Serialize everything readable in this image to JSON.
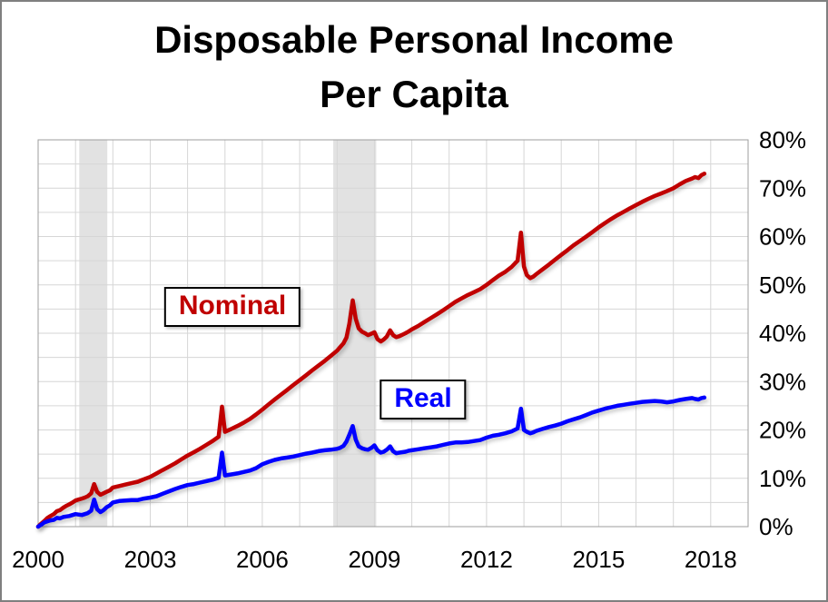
{
  "chart_data": {
    "type": "line",
    "title": "Disposable Personal Income Per Capita",
    "title_line1": "Disposable Personal Income",
    "title_line2": "Per Capita",
    "xlabel": "",
    "ylabel": "",
    "xlim": [
      2000,
      2019
    ],
    "ylim": [
      0,
      80
    ],
    "x_ticks": [
      2000,
      2003,
      2006,
      2009,
      2012,
      2015,
      2018
    ],
    "y_ticks": [
      0,
      10,
      20,
      30,
      40,
      50,
      60,
      70,
      80
    ],
    "y_tick_suffix": "%",
    "y_axis_side": "right",
    "grid": {
      "x_step": 1,
      "y_step": 5
    },
    "legend_position": "inline-labels",
    "recession_bands": [
      [
        2001.1,
        2001.85
      ],
      [
        2007.9,
        2009.05
      ]
    ],
    "colors": {
      "nominal": "#c00000",
      "real": "#0000ff",
      "recession_band": "#e2e2e2",
      "grid": "#d6d6d6",
      "plot_border": "#9e9e9e",
      "title": "#000000"
    },
    "labels": [
      {
        "text": "Nominal",
        "color": "#c00000",
        "x": 2005.2,
        "y": 45.5
      },
      {
        "text": "Real",
        "color": "#0000ff",
        "x": 2010.3,
        "y": 26.2
      }
    ],
    "series": [
      {
        "name": "Nominal",
        "color": "#c00000",
        "points": [
          [
            2000.0,
            0
          ],
          [
            2000.08,
            0.6
          ],
          [
            2000.17,
            1.2
          ],
          [
            2000.25,
            1.8
          ],
          [
            2000.33,
            2.2
          ],
          [
            2000.42,
            2.6
          ],
          [
            2000.5,
            3.2
          ],
          [
            2000.58,
            3.4
          ],
          [
            2000.67,
            3.9
          ],
          [
            2000.75,
            4.3
          ],
          [
            2000.83,
            4.6
          ],
          [
            2000.92,
            5.0
          ],
          [
            2001.0,
            5.4
          ],
          [
            2001.08,
            5.6
          ],
          [
            2001.17,
            5.8
          ],
          [
            2001.25,
            6.0
          ],
          [
            2001.33,
            6.3
          ],
          [
            2001.42,
            6.9
          ],
          [
            2001.5,
            8.8
          ],
          [
            2001.58,
            7.2
          ],
          [
            2001.67,
            6.6
          ],
          [
            2001.75,
            6.9
          ],
          [
            2001.83,
            7.2
          ],
          [
            2001.92,
            7.5
          ],
          [
            2002.0,
            8.1
          ],
          [
            2002.17,
            8.4
          ],
          [
            2002.33,
            8.7
          ],
          [
            2002.5,
            9.0
          ],
          [
            2002.67,
            9.3
          ],
          [
            2002.83,
            9.8
          ],
          [
            2003.0,
            10.3
          ],
          [
            2003.17,
            11.0
          ],
          [
            2003.33,
            11.7
          ],
          [
            2003.5,
            12.4
          ],
          [
            2003.67,
            13.1
          ],
          [
            2003.83,
            13.9
          ],
          [
            2004.0,
            14.7
          ],
          [
            2004.17,
            15.4
          ],
          [
            2004.33,
            16.1
          ],
          [
            2004.5,
            16.9
          ],
          [
            2004.67,
            17.7
          ],
          [
            2004.83,
            18.6
          ],
          [
            2004.92,
            24.8
          ],
          [
            2005.0,
            19.6
          ],
          [
            2005.17,
            20.2
          ],
          [
            2005.33,
            20.8
          ],
          [
            2005.5,
            21.5
          ],
          [
            2005.67,
            22.3
          ],
          [
            2005.83,
            23.2
          ],
          [
            2006.0,
            24.2
          ],
          [
            2006.17,
            25.3
          ],
          [
            2006.33,
            26.3
          ],
          [
            2006.5,
            27.3
          ],
          [
            2006.67,
            28.3
          ],
          [
            2006.83,
            29.3
          ],
          [
            2007.0,
            30.3
          ],
          [
            2007.17,
            31.3
          ],
          [
            2007.33,
            32.3
          ],
          [
            2007.5,
            33.3
          ],
          [
            2007.67,
            34.3
          ],
          [
            2007.83,
            35.3
          ],
          [
            2008.0,
            36.4
          ],
          [
            2008.08,
            37.1
          ],
          [
            2008.17,
            37.9
          ],
          [
            2008.25,
            39.1
          ],
          [
            2008.33,
            42.0
          ],
          [
            2008.42,
            46.8
          ],
          [
            2008.5,
            43.0
          ],
          [
            2008.58,
            41.0
          ],
          [
            2008.67,
            40.3
          ],
          [
            2008.75,
            40.0
          ],
          [
            2008.83,
            39.6
          ],
          [
            2008.92,
            39.9
          ],
          [
            2009.0,
            40.2
          ],
          [
            2009.08,
            38.8
          ],
          [
            2009.17,
            38.3
          ],
          [
            2009.25,
            38.7
          ],
          [
            2009.33,
            39.3
          ],
          [
            2009.42,
            40.6
          ],
          [
            2009.5,
            39.6
          ],
          [
            2009.58,
            39.2
          ],
          [
            2009.67,
            39.4
          ],
          [
            2009.75,
            39.7
          ],
          [
            2009.83,
            40.0
          ],
          [
            2009.92,
            40.4
          ],
          [
            2010.0,
            40.8
          ],
          [
            2010.17,
            41.5
          ],
          [
            2010.33,
            42.3
          ],
          [
            2010.5,
            43.1
          ],
          [
            2010.67,
            43.9
          ],
          [
            2010.83,
            44.7
          ],
          [
            2011.0,
            45.6
          ],
          [
            2011.17,
            46.5
          ],
          [
            2011.33,
            47.2
          ],
          [
            2011.5,
            47.9
          ],
          [
            2011.67,
            48.5
          ],
          [
            2011.83,
            49.1
          ],
          [
            2012.0,
            50.0
          ],
          [
            2012.17,
            51.0
          ],
          [
            2012.33,
            51.9
          ],
          [
            2012.5,
            52.7
          ],
          [
            2012.67,
            53.7
          ],
          [
            2012.83,
            55.0
          ],
          [
            2012.92,
            60.8
          ],
          [
            2013.0,
            53.8
          ],
          [
            2013.08,
            52.0
          ],
          [
            2013.17,
            51.4
          ],
          [
            2013.25,
            51.7
          ],
          [
            2013.33,
            52.2
          ],
          [
            2013.5,
            53.2
          ],
          [
            2013.67,
            54.2
          ],
          [
            2013.83,
            55.2
          ],
          [
            2014.0,
            56.2
          ],
          [
            2014.17,
            57.2
          ],
          [
            2014.33,
            58.2
          ],
          [
            2014.5,
            59.1
          ],
          [
            2014.67,
            60.0
          ],
          [
            2014.83,
            60.9
          ],
          [
            2015.0,
            61.9
          ],
          [
            2015.17,
            62.8
          ],
          [
            2015.33,
            63.6
          ],
          [
            2015.5,
            64.4
          ],
          [
            2015.67,
            65.1
          ],
          [
            2015.83,
            65.8
          ],
          [
            2016.0,
            66.5
          ],
          [
            2016.17,
            67.2
          ],
          [
            2016.33,
            67.8
          ],
          [
            2016.5,
            68.4
          ],
          [
            2016.67,
            68.9
          ],
          [
            2016.83,
            69.4
          ],
          [
            2017.0,
            70.0
          ],
          [
            2017.17,
            70.8
          ],
          [
            2017.33,
            71.5
          ],
          [
            2017.5,
            72.0
          ],
          [
            2017.58,
            72.3
          ],
          [
            2017.67,
            72.1
          ],
          [
            2017.75,
            72.7
          ],
          [
            2017.83,
            73.0
          ]
        ]
      },
      {
        "name": "Real",
        "color": "#0000ff",
        "points": [
          [
            2000.0,
            0
          ],
          [
            2000.08,
            0.4
          ],
          [
            2000.17,
            0.9
          ],
          [
            2000.25,
            1.1
          ],
          [
            2000.33,
            1.3
          ],
          [
            2000.42,
            1.4
          ],
          [
            2000.5,
            1.8
          ],
          [
            2000.58,
            1.7
          ],
          [
            2000.67,
            2.0
          ],
          [
            2000.75,
            2.1
          ],
          [
            2000.83,
            2.2
          ],
          [
            2000.92,
            2.4
          ],
          [
            2001.0,
            2.6
          ],
          [
            2001.08,
            2.5
          ],
          [
            2001.17,
            2.4
          ],
          [
            2001.25,
            2.6
          ],
          [
            2001.33,
            2.8
          ],
          [
            2001.42,
            3.3
          ],
          [
            2001.5,
            5.6
          ],
          [
            2001.58,
            3.6
          ],
          [
            2001.67,
            3.0
          ],
          [
            2001.75,
            3.4
          ],
          [
            2001.83,
            4.0
          ],
          [
            2001.92,
            4.4
          ],
          [
            2002.0,
            5.0
          ],
          [
            2002.17,
            5.3
          ],
          [
            2002.33,
            5.4
          ],
          [
            2002.5,
            5.5
          ],
          [
            2002.67,
            5.5
          ],
          [
            2002.83,
            5.8
          ],
          [
            2003.0,
            6.0
          ],
          [
            2003.17,
            6.3
          ],
          [
            2003.33,
            6.8
          ],
          [
            2003.5,
            7.3
          ],
          [
            2003.67,
            7.8
          ],
          [
            2003.83,
            8.2
          ],
          [
            2004.0,
            8.6
          ],
          [
            2004.17,
            8.8
          ],
          [
            2004.33,
            9.1
          ],
          [
            2004.5,
            9.4
          ],
          [
            2004.67,
            9.7
          ],
          [
            2004.83,
            10.1
          ],
          [
            2004.92,
            15.3
          ],
          [
            2005.0,
            10.6
          ],
          [
            2005.17,
            10.8
          ],
          [
            2005.33,
            11.0
          ],
          [
            2005.5,
            11.3
          ],
          [
            2005.67,
            11.6
          ],
          [
            2005.83,
            12.1
          ],
          [
            2006.0,
            12.9
          ],
          [
            2006.17,
            13.4
          ],
          [
            2006.33,
            13.8
          ],
          [
            2006.5,
            14.1
          ],
          [
            2006.67,
            14.3
          ],
          [
            2006.83,
            14.5
          ],
          [
            2007.0,
            14.8
          ],
          [
            2007.17,
            15.1
          ],
          [
            2007.33,
            15.3
          ],
          [
            2007.5,
            15.6
          ],
          [
            2007.67,
            15.8
          ],
          [
            2007.83,
            15.9
          ],
          [
            2008.0,
            16.1
          ],
          [
            2008.08,
            16.3
          ],
          [
            2008.17,
            16.7
          ],
          [
            2008.25,
            17.6
          ],
          [
            2008.33,
            19.0
          ],
          [
            2008.42,
            20.8
          ],
          [
            2008.5,
            18.0
          ],
          [
            2008.58,
            16.6
          ],
          [
            2008.67,
            16.2
          ],
          [
            2008.75,
            16.0
          ],
          [
            2008.83,
            15.9
          ],
          [
            2008.92,
            16.3
          ],
          [
            2009.0,
            16.8
          ],
          [
            2009.08,
            15.8
          ],
          [
            2009.17,
            15.3
          ],
          [
            2009.25,
            15.5
          ],
          [
            2009.33,
            15.9
          ],
          [
            2009.42,
            16.6
          ],
          [
            2009.5,
            15.6
          ],
          [
            2009.58,
            15.2
          ],
          [
            2009.67,
            15.3
          ],
          [
            2009.75,
            15.4
          ],
          [
            2009.83,
            15.5
          ],
          [
            2009.92,
            15.7
          ],
          [
            2010.0,
            15.8
          ],
          [
            2010.17,
            16.0
          ],
          [
            2010.33,
            16.2
          ],
          [
            2010.5,
            16.4
          ],
          [
            2010.67,
            16.6
          ],
          [
            2010.83,
            16.9
          ],
          [
            2011.0,
            17.2
          ],
          [
            2011.17,
            17.4
          ],
          [
            2011.33,
            17.4
          ],
          [
            2011.5,
            17.5
          ],
          [
            2011.67,
            17.7
          ],
          [
            2011.83,
            17.9
          ],
          [
            2012.0,
            18.4
          ],
          [
            2012.17,
            18.8
          ],
          [
            2012.33,
            19.0
          ],
          [
            2012.5,
            19.3
          ],
          [
            2012.67,
            19.7
          ],
          [
            2012.83,
            20.3
          ],
          [
            2012.92,
            24.4
          ],
          [
            2013.0,
            20.0
          ],
          [
            2013.08,
            19.6
          ],
          [
            2013.17,
            19.3
          ],
          [
            2013.25,
            19.5
          ],
          [
            2013.33,
            19.8
          ],
          [
            2013.5,
            20.2
          ],
          [
            2013.67,
            20.6
          ],
          [
            2013.83,
            20.9
          ],
          [
            2014.0,
            21.3
          ],
          [
            2014.17,
            21.8
          ],
          [
            2014.33,
            22.2
          ],
          [
            2014.5,
            22.6
          ],
          [
            2014.67,
            23.1
          ],
          [
            2014.83,
            23.6
          ],
          [
            2015.0,
            24.0
          ],
          [
            2015.17,
            24.4
          ],
          [
            2015.33,
            24.7
          ],
          [
            2015.5,
            25.0
          ],
          [
            2015.67,
            25.2
          ],
          [
            2015.83,
            25.4
          ],
          [
            2016.0,
            25.6
          ],
          [
            2016.17,
            25.8
          ],
          [
            2016.33,
            25.9
          ],
          [
            2016.5,
            26.0
          ],
          [
            2016.67,
            25.9
          ],
          [
            2016.83,
            25.7
          ],
          [
            2017.0,
            25.9
          ],
          [
            2017.17,
            26.2
          ],
          [
            2017.33,
            26.4
          ],
          [
            2017.5,
            26.6
          ],
          [
            2017.58,
            26.4
          ],
          [
            2017.67,
            26.3
          ],
          [
            2017.75,
            26.6
          ],
          [
            2017.83,
            26.7
          ]
        ]
      }
    ]
  }
}
